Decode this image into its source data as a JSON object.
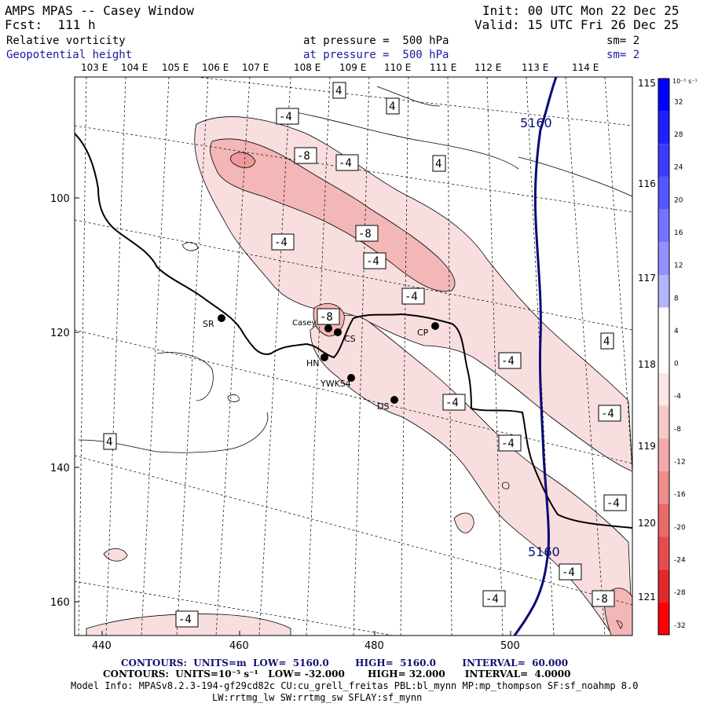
{
  "header": {
    "model": "AMPS MPAS -- Casey Window",
    "fcst": "Fcst:  111 h",
    "init": "Init: 00 UTC Mon 22 Dec 25",
    "valid": "Valid: 15 UTC Fri 26 Dec 25",
    "field1": "Relative vorticity",
    "field1_level": "at pressure =  500 hPa",
    "field1_sm": "sm= 2",
    "field2": "Geopotential height",
    "field2_level": "at pressure =  500 hPa",
    "field2_sm": "sm= 2"
  },
  "map": {
    "top_lon_labels": [
      "103 E",
      "104 E",
      "105 E",
      "106 E",
      "107 E",
      "108 E",
      "109 E",
      "110 E",
      "111 E",
      "112 E",
      "113 E",
      "114 E"
    ],
    "right_lon_labels": [
      "115 E",
      "116 E",
      "117 E",
      "118 E",
      "119 E",
      "120 E",
      "121 E"
    ],
    "y_ticks": [
      "100",
      "120",
      "140",
      "160"
    ],
    "x_ticks": [
      "440",
      "460",
      "480",
      "500"
    ],
    "stations": [
      {
        "id": "SR",
        "name": "SR"
      },
      {
        "id": "Casey",
        "name": "Casey"
      },
      {
        "id": "CS",
        "name": "CS"
      },
      {
        "id": "CP",
        "name": "CP"
      },
      {
        "id": "HN",
        "name": "HN"
      },
      {
        "id": "YWKS4",
        "name": "YWKS4"
      },
      {
        "id": "DS",
        "name": "DS"
      }
    ],
    "height_contour_label": "5160",
    "vorticity_labels": [
      "4",
      "-4",
      "-8"
    ],
    "colors": {
      "height_contour": "#0a0a78",
      "pos_light": "#f8dede",
      "pos_mid": "#f3b7b7",
      "pos_dark": "#ee9a9a"
    }
  },
  "colorbar": {
    "unit": "10⁻⁵ s⁻¹",
    "labels": [
      "32",
      "28",
      "24",
      "20",
      "16",
      "12",
      "8",
      "4",
      "0",
      "-4",
      "-8",
      "-12",
      "-16",
      "-20",
      "-24",
      "-28",
      "-32"
    ],
    "colors": [
      "#0000ff",
      "#2020ff",
      "#3b3bff",
      "#5656ff",
      "#7373ff",
      "#9090ff",
      "#b5b5ff",
      "#ffffff",
      "#ffffff",
      "#fde6e6",
      "#f8c9c9",
      "#f3a9a9",
      "#ef8c8c",
      "#ea6a6a",
      "#e64c4c",
      "#e12a2a",
      "#ff0000"
    ]
  },
  "footer": {
    "contours1": "CONTOURS:  UNITS=m  LOW=  5160.0        HIGH=  5160.0        INTERVAL=  60.000",
    "contours2": "CONTOURS:  UNITS=10⁻⁵ s⁻¹   LOW= -32.000       HIGH= 32.000      INTERVAL=  4.0000",
    "model_info": "Model Info: MPASv8.2.3-194-gf29cd82c CU:cu_grell_freitas PBL:bl_mynn MP:mp_thompson SF:sf_noahmp 8.0",
    "model_info2": "LW:rrtmg_lw SW:rrtmg_sw SFLAY:sf_mynn"
  }
}
